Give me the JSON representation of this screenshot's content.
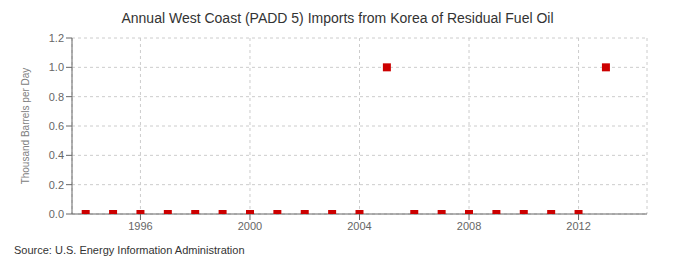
{
  "chart_data": {
    "type": "scatter",
    "title": "Annual West Coast (PADD 5) Imports from Korea of Residual Fuel Oil",
    "y_label": "Thousand Barrels per Day",
    "annotation": "Source: U.S. Energy Information Administration",
    "x": [
      1994,
      1995,
      1996,
      1997,
      1998,
      1999,
      2000,
      2001,
      2002,
      2003,
      2004,
      2005,
      2006,
      2007,
      2008,
      2009,
      2010,
      2011,
      2012,
      2013
    ],
    "values": [
      0,
      0,
      0,
      0,
      0,
      0,
      0,
      0,
      0,
      0,
      0,
      1.0,
      0,
      0,
      0,
      0,
      0,
      0,
      0,
      1.0
    ],
    "color": "#cc0000",
    "marker": "square",
    "xlim": [
      1993.5,
      2014.5
    ],
    "xticks": [
      1996,
      2000,
      2004,
      2008,
      2012
    ],
    "ylim": [
      0.0,
      1.2
    ],
    "yticks": [
      {
        "value": 0.0,
        "label": "0.0"
      },
      {
        "value": 0.2,
        "label": "0.2"
      },
      {
        "value": 0.4,
        "label": "0.4"
      },
      {
        "value": 0.6,
        "label": "0.6"
      },
      {
        "value": 0.8,
        "label": "0.8"
      },
      {
        "value": 1.0,
        "label": "1.0"
      },
      {
        "value": 1.2,
        "label": "1.2"
      }
    ],
    "grid": true
  }
}
